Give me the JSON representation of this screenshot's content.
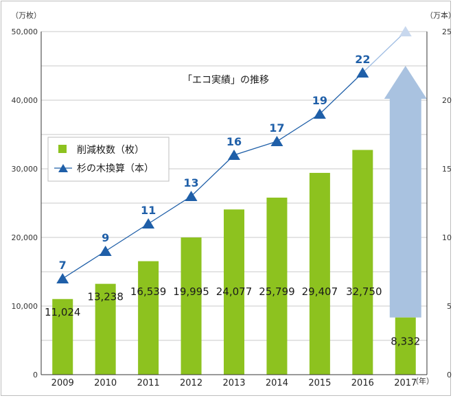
{
  "chart_data": {
    "type": "bar+line",
    "categories": [
      "2009",
      "2010",
      "2011",
      "2012",
      "2013",
      "2014",
      "2015",
      "2016",
      "2017"
    ],
    "series": [
      {
        "name": "削減枚数（枚）",
        "kind": "bar",
        "axis": "left",
        "values": [
          11024,
          13238,
          16539,
          19995,
          24077,
          25799,
          29407,
          32750,
          8332
        ],
        "labels": [
          "11,024",
          "13,238",
          "16,539",
          "19,995",
          "24,077",
          "25,799",
          "29,407",
          "32,750",
          "8,332"
        ],
        "color": "#8dc21f"
      },
      {
        "name": "杉の木換算（本）",
        "kind": "line",
        "axis": "right",
        "values": [
          7,
          9,
          11,
          13,
          16,
          17,
          19,
          22,
          25
        ],
        "labels": [
          "7",
          "9",
          "11",
          "13",
          "16",
          "17",
          "19",
          "22",
          ""
        ],
        "color": "#1f5fa8"
      }
    ],
    "left_axis": {
      "unit": "（万枚）",
      "ylim": [
        0,
        50000
      ],
      "ticks": [
        0,
        10000,
        20000,
        30000,
        40000,
        50000
      ],
      "tick_labels": [
        "0",
        "10,000",
        "20,000",
        "30,000",
        "40,000",
        "50,000"
      ]
    },
    "right_axis": {
      "unit": "（万本）",
      "ylim": [
        0,
        25
      ],
      "ticks": [
        0,
        5,
        10,
        15,
        20,
        25
      ],
      "tick_labels": [
        "0",
        "5",
        "10",
        "15",
        "20",
        "25"
      ]
    },
    "x_unit": "（年）",
    "annotation": "「エコ実績」の推移",
    "legend": {
      "placement": "upper-left",
      "bar_label": "削減枚数（枚）",
      "line_label": "杉の木換算（本）"
    },
    "grid": true,
    "colors": {
      "bar": "#8dc21f",
      "line": "#1f5fa8",
      "projection_line": "#9fbde3",
      "projection_marker": "#c8d8ee",
      "arrow": "#a9c2e0"
    }
  }
}
